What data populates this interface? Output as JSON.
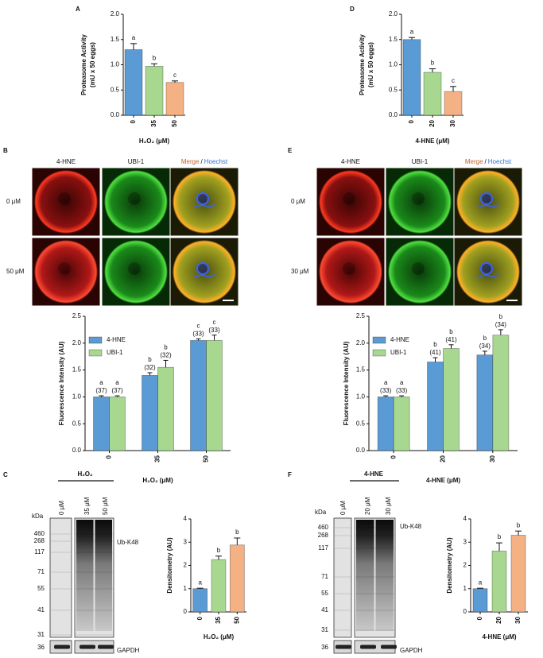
{
  "panel_labels": [
    "A",
    "B",
    "C",
    "D",
    "E",
    "F"
  ],
  "chart_data": [
    {
      "type": "bar",
      "ylabel": [
        "Proteasome Activity",
        "(mU x 50 eggs)"
      ],
      "xlabel": "H₂O₂ (μM)",
      "categories": [
        "0",
        "35",
        "50"
      ],
      "values": [
        1.3,
        0.97,
        0.65
      ],
      "errors": [
        0.12,
        0.05,
        0.03
      ],
      "colors": [
        "#5b9bd5",
        "#a8d890",
        "#f4b183"
      ],
      "annotations": [
        "a",
        "b",
        "c"
      ],
      "ylim": [
        0,
        2
      ],
      "yticks": [
        {
          "value": 0,
          "label": "0.0"
        },
        0.5,
        {
          "value": 1,
          "label": "1.0"
        },
        1.5,
        {
          "value": 2,
          "label": "2.0"
        }
      ]
    },
    {
      "type": "bar",
      "ylabel": [
        "Proteasome Activity",
        "(mU x 50 eggs)"
      ],
      "xlabel": "4-HNE (μM)",
      "categories": [
        "0",
        "20",
        "30"
      ],
      "values": [
        1.5,
        0.85,
        0.47
      ],
      "errors": [
        0.04,
        0.07,
        0.1
      ],
      "colors": [
        "#5b9bd5",
        "#a8d890",
        "#f4b183"
      ],
      "annotations": [
        "a",
        "b",
        "c"
      ],
      "ylim": [
        0,
        2
      ],
      "yticks": [
        {
          "value": 0,
          "label": "0.0"
        },
        0.5,
        {
          "value": 1,
          "label": "1.0"
        },
        1.5,
        {
          "value": 2,
          "label": "2.0"
        }
      ]
    },
    {
      "type": "bar",
      "ylabel": "Fluorescence Intensity (AU)",
      "xlabel": "H₂O₂ (μM)",
      "categories": [
        "0",
        "35",
        "50"
      ],
      "legend": "upper left",
      "series": [
        {
          "name": "4-HNE",
          "color": "#5b9bd5",
          "values": [
            1,
            1.4,
            2.05
          ],
          "errors": [
            0.02,
            0.05,
            0.03
          ],
          "annotations": [
            "a",
            "b",
            "c"
          ],
          "n_labels": [
            "(37)",
            "(32)",
            "(33)"
          ]
        },
        {
          "name": "UBI-1",
          "color": "#a8d890",
          "values": [
            1,
            1.55,
            2.05
          ],
          "errors": [
            0.02,
            0.13,
            0.1
          ],
          "annotations": [
            "a",
            "b",
            "c"
          ],
          "n_labels": [
            "(37)",
            "(32)",
            "(33)"
          ]
        }
      ],
      "ylim": [
        0,
        2.5
      ],
      "yticks": [
        {
          "value": 0,
          "label": "0.0"
        },
        0.5,
        {
          "value": 1,
          "label": "1.0"
        },
        1.5,
        {
          "value": 2,
          "label": "2.0"
        },
        2.5
      ]
    },
    {
      "type": "bar",
      "ylabel": "Fluorescence Intensity (AU)",
      "xlabel": "4-HNE (μM)",
      "categories": [
        "0",
        "20",
        "30"
      ],
      "legend": "upper left",
      "series": [
        {
          "name": "4-HNE",
          "color": "#5b9bd5",
          "values": [
            1,
            1.65,
            1.78
          ],
          "errors": [
            0.02,
            0.08,
            0.07
          ],
          "annotations": [
            "a",
            "b",
            "b"
          ],
          "n_labels": [
            "(33)",
            "(41)",
            "(34)"
          ]
        },
        {
          "name": "UBI-1",
          "color": "#a8d890",
          "values": [
            1,
            1.9,
            2.15
          ],
          "errors": [
            0.02,
            0.07,
            0.1
          ],
          "annotations": [
            "a",
            "b",
            "b"
          ],
          "n_labels": [
            "(33)",
            "(41)",
            "(34)"
          ]
        }
      ],
      "ylim": [
        0,
        2.5
      ],
      "yticks": [
        {
          "value": 0,
          "label": "0.0"
        },
        0.5,
        {
          "value": 1,
          "label": "1.0"
        },
        1.5,
        {
          "value": 2,
          "label": "2.0"
        },
        2.5
      ]
    },
    {
      "type": "bar",
      "ylabel": "Densitometry (AU)",
      "xlabel": "H₂O₂ (μM)",
      "categories": [
        "0",
        "35",
        "50"
      ],
      "values": [
        1,
        2.25,
        2.88
      ],
      "errors": [
        0.02,
        0.15,
        0.3
      ],
      "colors": [
        "#5b9bd5",
        "#a8d890",
        "#f4b183"
      ],
      "annotations": [
        "a",
        "b",
        "b"
      ],
      "ylim": [
        0,
        4
      ],
      "yticks": [
        0,
        1,
        2,
        3,
        4
      ]
    },
    {
      "type": "bar",
      "ylabel": "Densitometry (AU)",
      "xlabel": "4-HNE (μM)",
      "categories": [
        "0",
        "20",
        "30"
      ],
      "values": [
        1,
        2.62,
        3.3
      ],
      "errors": [
        0.02,
        0.35,
        0.18
      ],
      "colors": [
        "#5b9bd5",
        "#a8d890",
        "#f4b183"
      ],
      "annotations": [
        "a",
        "b",
        "b"
      ],
      "ylim": [
        0,
        4
      ],
      "yticks": [
        0,
        1,
        2,
        3,
        4
      ]
    }
  ],
  "micrographs": [
    {
      "columns": [
        "4-HNE",
        "UBI-1"
      ],
      "merge": [
        "Merge",
        "/",
        "Hoechst"
      ],
      "rows": [
        "0 μM",
        "50 μM"
      ]
    },
    {
      "columns": [
        "4-HNE",
        "UBI-1"
      ],
      "merge": [
        "Merge",
        "/",
        "Hoechst"
      ],
      "rows": [
        "0 μM",
        "30 μM"
      ]
    }
  ],
  "blots": [
    {
      "header": "H₂O₂",
      "lanes": [
        "0 μM",
        "35 μM",
        "50 μM"
      ],
      "unit": "kDa",
      "markers": [
        460,
        268,
        117,
        71,
        55,
        41,
        31
      ],
      "loading_marker": 36,
      "target": "Ub-K48",
      "loading": "GAPDH"
    },
    {
      "header": "4-HNE",
      "lanes": [
        "0 μM",
        "20 μM",
        "30 μM"
      ],
      "unit": "kDa",
      "markers": [
        460,
        268,
        117,
        71,
        55,
        41,
        31
      ],
      "loading_marker": 36,
      "target": "Ub-K48",
      "loading": "GAPDH"
    }
  ]
}
